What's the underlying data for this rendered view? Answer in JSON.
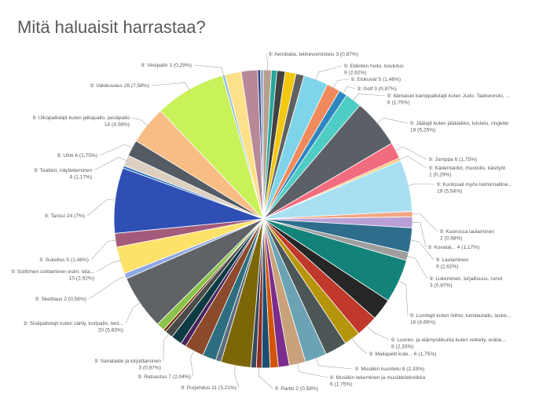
{
  "chart_data": {
    "type": "pie",
    "title": "Mitä haluaisit harrastaa?",
    "slices": [
      {
        "label": "9: Akrobatia, telinevoimistelu",
        "value": 3,
        "pct": "0,87%",
        "color": "#b5a08f",
        "text": "9: Akrobatia, telinevoimistelu 3 (0,87%)"
      },
      {
        "label": "",
        "value": 2,
        "pct": "",
        "color": "#26a69a",
        "text": ""
      },
      {
        "label": "",
        "value": 3,
        "pct": "",
        "color": "#424242",
        "text": ""
      },
      {
        "label": "",
        "value": 4,
        "pct": "",
        "color": "#f2c811",
        "text": ""
      },
      {
        "label": "",
        "value": 3,
        "pct": "",
        "color": "#616161",
        "text": ""
      },
      {
        "label": "9: Eläinten hoito, koulutus",
        "value": 9,
        "pct": "2,62%",
        "color": "#7fd4ea",
        "text": "9: Eläinten hoito, koulutus|9 (2,62%)"
      },
      {
        "label": "9: Elokuvat",
        "value": 5,
        "pct": "1,46%",
        "color": "#f08a5d",
        "text": "9: Elokuvat 5 (1,46%)"
      },
      {
        "label": "9: Golf",
        "value": 3,
        "pct": "0,87%",
        "color": "#2e86c1",
        "text": "9: Golf 3 (0,87%)"
      },
      {
        "label": "9: Itämaiset kamppailulajit kuten Judo, Taekwondo, ...",
        "value": 6,
        "pct": "1,75%",
        "color": "#4ecdc4",
        "text": "9: Itämaiset kamppailulajit kuten Judo, Taekwondo, ...|6 (1,75%)"
      },
      {
        "label": "9: Jäälajit kuten jääkiekko, luistelu, ringette",
        "value": 18,
        "pct": "5,25%",
        "color": "#5a6066",
        "text": "9: Jäälajit kuten jääkiekko, luistelu, ringette|18 (5,25%)"
      },
      {
        "label": "9: Jumppa",
        "value": 6,
        "pct": "1,75%",
        "color": "#f36b7f",
        "text": "9: Jumppa 6 (1,75%)"
      },
      {
        "label": "9: Kädentaidot, muotoilu, käsityöt",
        "value": 1,
        "pct": "0,29%",
        "color": "#f7c873",
        "text": "9: Kädentaidot, muotoilu, käsityöt|1 (0,29%)"
      },
      {
        "label": "9: Kuntosali myös toiminnalline...",
        "value": 19,
        "pct": "5,54%",
        "color": "#a8e0f2",
        "text": "9: Kuntosali myös toiminnalline...|19 (5,54%)"
      },
      {
        "label": "9: Kuorossa laulaminen",
        "value": 2,
        "pct": "0,58%",
        "color": "#f4a582",
        "text": "9: Kuorossa laulaminen|2 (0,58%)"
      },
      {
        "label": "9: Kuvatai...",
        "value": 4,
        "pct": "1,17%",
        "color": "#b8a0d6",
        "text": "9: Kuvatai... 4 (1,17%)"
      },
      {
        "label": "9: Laulaminen",
        "value": 9,
        "pct": "2,62%",
        "color": "#2e6e8c",
        "text": "9: Laulaminen|9 (2,62%)"
      },
      {
        "label": "9: Lukeminen, kirjallisuus, runot",
        "value": 3,
        "pct": "0,87%",
        "color": "#9e9e9e",
        "text": "9: Lukeminen, kirjallisuus, runot|3 (0,87%)"
      },
      {
        "label": "9: Lumilajit kuten hiihto, lumilautailu, laske...",
        "value": 16,
        "pct": "4,66%",
        "color": "#13837a",
        "text": "9: Lumilajit kuten hiihto, lumilautailu, laske...|16 (4,66%)"
      },
      {
        "label": "",
        "value": 8,
        "pct": "",
        "color": "#262626",
        "text": ""
      },
      {
        "label": "9: Luonto- ja elämysliikunta kuten retkeily, erätai...",
        "value": 8,
        "pct": "2,33%",
        "color": "#c0392b",
        "text": "9: Luonto- ja elämysliikunta kuten retkeily, erätai...|8 (2,33%)"
      },
      {
        "label": "9: Mailapelit kute...",
        "value": 6,
        "pct": "1,75%",
        "color": "#b7950b",
        "text": "9: Mailapelit kute... 6 (1,75%)"
      },
      {
        "label": "",
        "value": 8,
        "pct": "",
        "color": "#4d5656",
        "text": ""
      },
      {
        "label": "9: Musiikin kuuntelu",
        "value": 8,
        "pct": "2,33%",
        "color": "#6ba3b5",
        "text": "9: Musiikin kuuntelu 8 (2,33%)"
      },
      {
        "label": "9: Musiikin tekeminen ja musiikkitekniikka",
        "value": 6,
        "pct": "1,75%",
        "color": "#c8a27a",
        "text": "9: Musiikin tekeminen ja musiikkitekniikka|6 (1,75%)"
      },
      {
        "label": "",
        "value": 4,
        "pct": "",
        "color": "#7b2d8b",
        "text": ""
      },
      {
        "label": "",
        "value": 3,
        "pct": "",
        "color": "#d35400",
        "text": ""
      },
      {
        "label": "",
        "value": 3,
        "pct": "",
        "color": "#1b4f72",
        "text": ""
      },
      {
        "label": "9: Partio",
        "value": 2,
        "pct": "0,58%",
        "color": "#922b21",
        "text": "9: Partio 2 (0,58%)"
      },
      {
        "label": "",
        "value": 2,
        "pct": "",
        "color": "#34495e",
        "text": ""
      },
      {
        "label": "9: Purjehdus",
        "value": 11,
        "pct": "3,21%",
        "color": "#7d6608",
        "text": "9: Purjehdus 11 (3,21%)"
      },
      {
        "label": "",
        "value": 2,
        "pct": "",
        "color": "#5d6d7e",
        "text": ""
      },
      {
        "label": "",
        "value": 5,
        "pct": "",
        "color": "#2c6e7f",
        "text": ""
      },
      {
        "label": "9: Ratsastus",
        "value": 7,
        "pct": "2,04%",
        "color": "#8b4a2b",
        "text": "9: Ratsastus 7 (2,04%)"
      },
      {
        "label": "",
        "value": 2,
        "pct": "",
        "color": "#4a235a",
        "text": ""
      },
      {
        "label": "",
        "value": 4,
        "pct": "",
        "color": "#0e3b43",
        "text": ""
      },
      {
        "label": "9: Sanataide ja kirjoittaminen",
        "value": 3,
        "pct": "0,87%",
        "color": "#4a4a4a",
        "text": "9: Sanataide ja kirjoittaminen|3 (0,87%)"
      },
      {
        "label": "",
        "value": 1,
        "pct": "",
        "color": "#6e2c00",
        "text": ""
      },
      {
        "label": "",
        "value": 3,
        "pct": "",
        "color": "#8bc34a",
        "text": ""
      },
      {
        "label": "9: Sisäpallolajit kuten sähly, koripallo, lent...",
        "value": 20,
        "pct": "5,83%",
        "color": "#5f6368",
        "text": "9: Sisäpallolajit kuten sähly, koripallo, lent...|20 (5,83%)"
      },
      {
        "label": "9: Skeittaus",
        "value": 2,
        "pct": "0,58%",
        "color": "#8fa8e6",
        "text": "9: Skeittaus 2 (0,58%)"
      },
      {
        "label": "9: Soittimen soittaminen esim. kita...",
        "value": 10,
        "pct": "2,92%",
        "color": "#fde26a",
        "text": "9: Soittimen soittaminen esim. kita...|10 (2,92%)"
      },
      {
        "label": "9: Sukellus",
        "value": 5,
        "pct": "1,46%",
        "color": "#a45a7a",
        "text": "9: Sukellus 5 (1,46%)"
      },
      {
        "label": "9: Tanssi",
        "value": 24,
        "pct": "7%",
        "color": "#2f4fb5",
        "text": "9: Tanssi 24 (7%)"
      },
      {
        "label": "",
        "value": 1,
        "pct": "",
        "color": "#3b7bbf",
        "text": ""
      },
      {
        "label": "9: Teatteri, näytteleminen",
        "value": 4,
        "pct": "1,17%",
        "color": "#ddd0c0",
        "text": "9: Teatteri, näytteleminen|4 (1,17%)"
      },
      {
        "label": "9: Uinti",
        "value": 6,
        "pct": "1,75%",
        "color": "#555b63",
        "text": "9: Uinti 6 (1,75%)"
      },
      {
        "label": "9: Ulkopallolajit kuten jalkapallo, pesäpallo",
        "value": 14,
        "pct": "4,08%",
        "color": "#f7bd85",
        "text": "9: Ulkopallolajit kuten jalkapallo, pesäpallo|14 (4,08%)"
      },
      {
        "label": "9: Valokuvaus",
        "value": 26,
        "pct": "7,58%",
        "color": "#c8f15a",
        "text": "9: Valokuvaus 26 (7,58%)"
      },
      {
        "label": "9: Vesipallo",
        "value": 1,
        "pct": "0,29%",
        "color": "#8fc1e0",
        "text": "9: Vesipallo 1 (0,29%)"
      },
      {
        "label": "",
        "value": 6,
        "pct": "",
        "color": "#fde08a",
        "text": ""
      },
      {
        "label": "",
        "value": 6,
        "pct": "",
        "color": "#b78895",
        "text": ""
      },
      {
        "label": "",
        "value": 1,
        "pct": "",
        "color": "#2a3b7a",
        "text": ""
      },
      {
        "label": "",
        "value": 1,
        "pct": "",
        "color": "#8aa0c8",
        "text": ""
      }
    ]
  }
}
